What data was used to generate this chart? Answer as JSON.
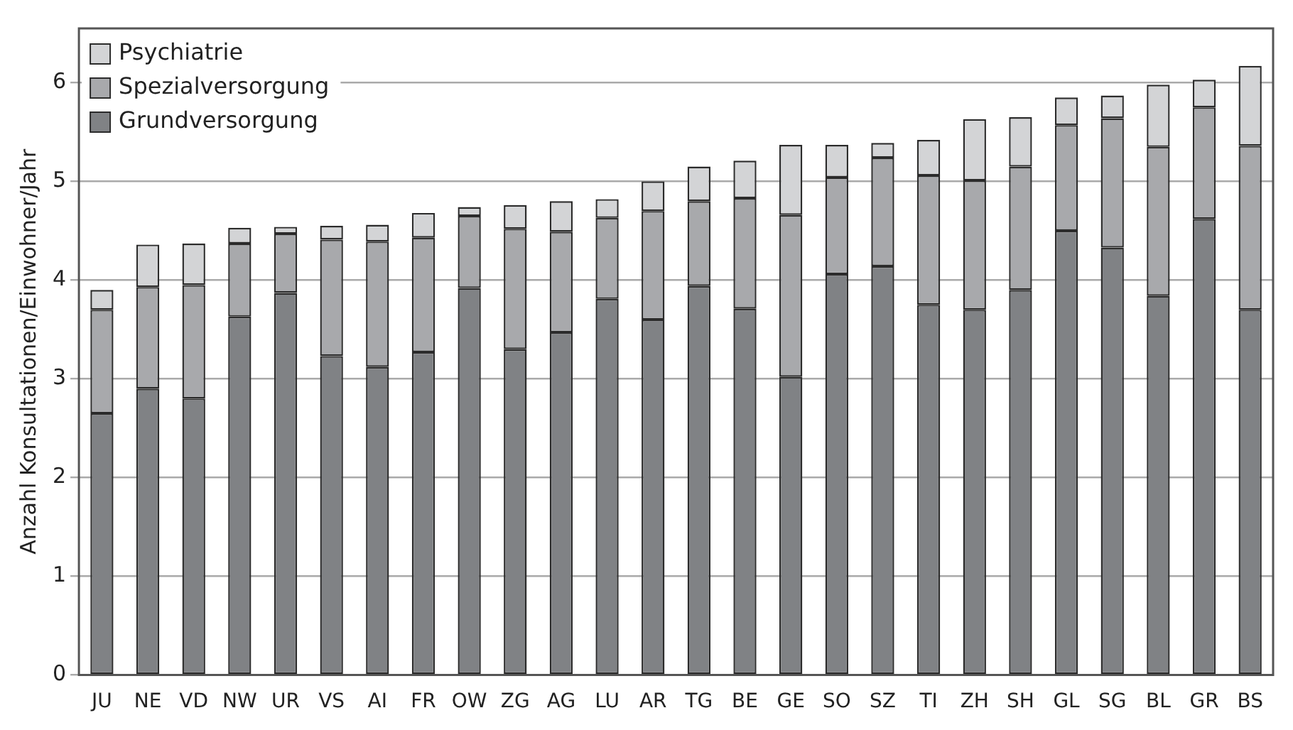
{
  "chart_data": {
    "type": "bar",
    "stacked": true,
    "ylabel": "Anzahl Konsultationen/Einwohner/Jahr",
    "categories": [
      "JU",
      "NE",
      "VD",
      "NW",
      "UR",
      "VS",
      "AI",
      "FR",
      "OW",
      "ZG",
      "AG",
      "LU",
      "AR",
      "TG",
      "BE",
      "GE",
      "SO",
      "SZ",
      "TI",
      "ZH",
      "SH",
      "GL",
      "SG",
      "BL",
      "GR",
      "BS"
    ],
    "series": [
      {
        "name": "Grundversorgung",
        "color": "#808285",
        "values": [
          2.65,
          2.9,
          2.8,
          3.63,
          3.87,
          3.23,
          3.12,
          3.27,
          3.92,
          3.3,
          3.47,
          3.81,
          3.6,
          3.94,
          3.71,
          3.02,
          4.06,
          4.14,
          3.75,
          3.7,
          3.9,
          4.5,
          4.33,
          3.84,
          4.62,
          3.7
        ]
      },
      {
        "name": "Spezialversorgung",
        "color": "#a8a9ac",
        "values": [
          1.05,
          1.03,
          1.15,
          0.74,
          0.6,
          1.18,
          1.27,
          1.16,
          0.73,
          1.22,
          1.02,
          0.82,
          1.1,
          0.86,
          1.12,
          1.64,
          0.98,
          1.1,
          1.31,
          1.31,
          1.25,
          1.07,
          1.31,
          1.51,
          1.13,
          1.66
        ]
      },
      {
        "name": "Psychiatrie",
        "color": "#d3d4d6",
        "values": [
          0.2,
          0.43,
          0.42,
          0.16,
          0.07,
          0.14,
          0.17,
          0.25,
          0.09,
          0.24,
          0.31,
          0.19,
          0.3,
          0.35,
          0.38,
          0.71,
          0.33,
          0.15,
          0.36,
          0.62,
          0.5,
          0.28,
          0.23,
          0.63,
          0.28,
          0.81
        ]
      }
    ],
    "ylim": [
      0,
      6.55
    ],
    "yticks": [
      0,
      1,
      2,
      3,
      4,
      5,
      6
    ],
    "grid": "y",
    "legend": "top left"
  }
}
